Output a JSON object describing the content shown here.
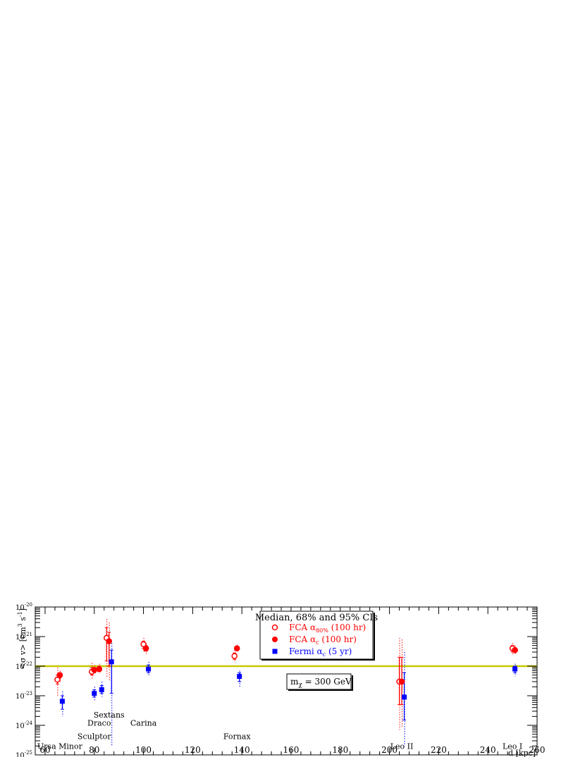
{
  "chart_data": {
    "type": "scatter",
    "title": "",
    "xlabel": "d [kpc]",
    "ylabel": "<σ v> [cm³ s⁻¹]",
    "ylabel_main": "<σ v> [cm",
    "ylabel_sup1": "3",
    "ylabel_mid": " s",
    "ylabel_sup2": "-1",
    "ylabel_end": "]",
    "xlim": [
      56,
      260
    ],
    "ylim_log10": [
      -25,
      -20
    ],
    "log_y": true,
    "grid": false,
    "x_ticks": [
      "60",
      "80",
      "100",
      "120",
      "140",
      "160",
      "180",
      "200",
      "220",
      "240",
      "260"
    ],
    "y_ticks": [
      {
        "base": "10",
        "exp": "-25"
      },
      {
        "base": "10",
        "exp": "-24"
      },
      {
        "base": "10",
        "exp": "-23"
      },
      {
        "base": "10",
        "exp": "-22"
      },
      {
        "base": "10",
        "exp": "-21"
      },
      {
        "base": "10",
        "exp": "-20"
      }
    ],
    "reference_line": {
      "y": 1e-22,
      "color": "#c8c800"
    },
    "legend": {
      "placement": "top-center",
      "header": "Median, 68% and 95% CIs",
      "entries": [
        {
          "marker": "open-circle",
          "color": "#ff0000",
          "text": "FCA α",
          "sub": "80%",
          "suffix": " (100 hr)"
        },
        {
          "marker": "filled-circle",
          "color": "#ff0000",
          "text": "FCA α",
          "sub": "c",
          "suffix": " (100 hr)"
        },
        {
          "marker": "filled-square",
          "color": "#0000ff",
          "text": "Fermi α",
          "sub": "c",
          "suffix": " (5 yr)"
        }
      ]
    },
    "annotation": {
      "text_main": "m",
      "text_sub": "χ",
      "text_rest": " = 300 GeV"
    },
    "galaxy_labels": [
      {
        "name": "Ursa Minor",
        "x": 66,
        "y": 2e-25
      },
      {
        "name": "Sculptor",
        "x": 80,
        "y": 4.3e-25
      },
      {
        "name": "Draco",
        "x": 82,
        "y": 1.2e-24
      },
      {
        "name": "Sextans",
        "x": 86,
        "y": 2.3e-24
      },
      {
        "name": "Carina",
        "x": 100,
        "y": 1.2e-24
      },
      {
        "name": "Fornax",
        "x": 138,
        "y": 4.3e-25
      },
      {
        "name": "Leo II",
        "x": 205,
        "y": 2e-25
      },
      {
        "name": "Leo I",
        "x": 250,
        "y": 2e-25
      }
    ],
    "series": [
      {
        "name": "FCA α80% (100 hr)",
        "marker": "open-circle",
        "color": "#ff0000",
        "points": [
          {
            "x": 65,
            "y": 3.5e-23,
            "lo68": 2.5e-23,
            "hi68": 5e-23,
            "lo95": 1e-23,
            "hi95": 9e-23
          },
          {
            "x": 79,
            "y": 6.5e-23,
            "lo68": 5e-23,
            "hi68": 9e-23,
            "lo95": 3.5e-23,
            "hi95": 1.3e-22
          },
          {
            "x": 85,
            "y": 9e-22,
            "lo68": 1.5e-22,
            "hi68": 2e-21,
            "lo95": 4e-23,
            "hi95": 4e-21
          },
          {
            "x": 100,
            "y": 5.5e-22,
            "lo68": 4e-22,
            "hi68": 7e-22,
            "lo95": 3e-22,
            "hi95": 9e-22
          },
          {
            "x": 137,
            "y": 2.2e-22,
            "lo68": 1.7e-22,
            "hi68": 2.8e-22,
            "lo95": 1.3e-22,
            "hi95": 3.5e-22
          },
          {
            "x": 204,
            "y": 3e-23,
            "lo68": 5e-24,
            "hi68": 2e-22,
            "lo95": 7e-25,
            "hi95": 9e-22
          },
          {
            "x": 250,
            "y": 4e-22,
            "lo68": 3e-22,
            "hi68": 5e-22,
            "lo95": 2.4e-22,
            "hi95": 6e-22
          }
        ]
      },
      {
        "name": "FCA αc (100 hr)",
        "marker": "filled-circle",
        "color": "#ff0000",
        "points": [
          {
            "x": 66,
            "y": 5e-23,
            "lo68": 4e-23,
            "hi68": 6e-23,
            "lo95": 3e-23,
            "hi95": 7e-23
          },
          {
            "x": 80,
            "y": 7.5e-23,
            "lo68": 6e-23,
            "hi68": 9e-23,
            "lo95": 5e-23,
            "hi95": 1.1e-22
          },
          {
            "x": 82,
            "y": 8e-23,
            "lo68": 6.5e-23,
            "hi68": 1e-22,
            "lo95": 5.5e-23,
            "hi95": 1.2e-22
          },
          {
            "x": 86,
            "y": 7e-22,
            "lo68": 1e-22,
            "hi68": 1.4e-21,
            "lo95": 3e-23,
            "hi95": 3e-21
          },
          {
            "x": 101,
            "y": 4e-22,
            "lo68": 3.2e-22,
            "hi68": 5e-22,
            "lo95": 2.6e-22,
            "hi95": 6e-22
          },
          {
            "x": 138,
            "y": 4e-22,
            "lo68": 3.4e-22,
            "hi68": 4.7e-22,
            "lo95": 3e-22,
            "hi95": 5.3e-22
          },
          {
            "x": 205,
            "y": 3e-23,
            "lo68": 5e-24,
            "hi68": 2e-22,
            "lo95": 8e-25,
            "hi95": 8e-22
          },
          {
            "x": 251,
            "y": 3.5e-22,
            "lo68": 3e-22,
            "hi68": 4.2e-22,
            "lo95": 2.6e-22,
            "hi95": 5e-22
          }
        ]
      },
      {
        "name": "Fermi αc (5 yr)",
        "marker": "filled-square",
        "color": "#0000ff",
        "points": [
          {
            "x": 67,
            "y": 6.5e-24,
            "lo68": 3.5e-24,
            "hi68": 1e-23,
            "lo95": 2e-24,
            "hi95": 1.4e-23
          },
          {
            "x": 80,
            "y": 1.2e-23,
            "lo68": 9e-24,
            "hi68": 1.6e-23,
            "lo95": 7e-24,
            "hi95": 2e-23
          },
          {
            "x": 83,
            "y": 1.6e-23,
            "lo68": 1.2e-23,
            "hi68": 2.2e-23,
            "lo95": 9e-24,
            "hi95": 3e-23
          },
          {
            "x": 87,
            "y": 1.4e-22,
            "lo68": 1.2e-23,
            "hi68": 3.5e-22,
            "lo95": 2e-25,
            "hi95": 6e-22
          },
          {
            "x": 102,
            "y": 8e-23,
            "lo68": 6e-23,
            "hi68": 1.1e-22,
            "lo95": 4.5e-23,
            "hi95": 1.4e-22
          },
          {
            "x": 139,
            "y": 4.5e-23,
            "lo68": 3e-23,
            "hi68": 6e-23,
            "lo95": 2e-23,
            "hi95": 7e-23
          },
          {
            "x": 206,
            "y": 9e-24,
            "lo68": 1.5e-24,
            "hi68": 6e-23,
            "lo95": 2e-25,
            "hi95": 3e-22
          },
          {
            "x": 251,
            "y": 8e-23,
            "lo68": 6e-23,
            "hi68": 1e-22,
            "lo95": 4.5e-23,
            "hi95": 1.2e-22
          }
        ]
      }
    ]
  }
}
